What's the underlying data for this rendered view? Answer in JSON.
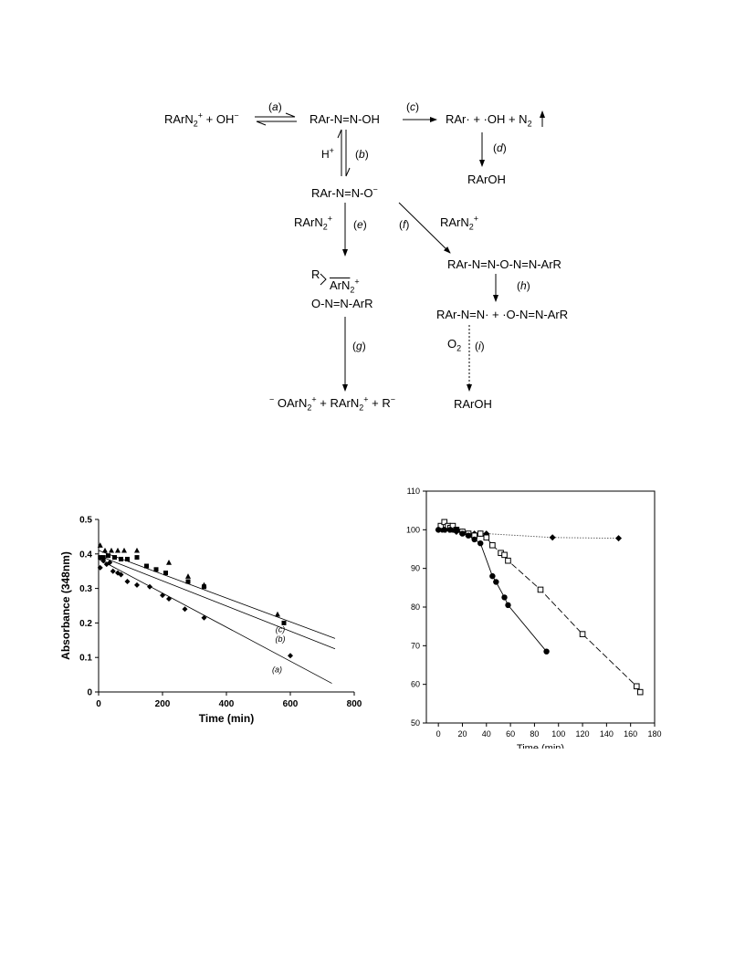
{
  "scheme": {
    "r1": {
      "left": "RArN",
      "sub": "2",
      "sup": "+",
      "rest": " + OH",
      "sup2": "−"
    },
    "a": {
      "open": "(",
      "letter": "a",
      "close": ")"
    },
    "r2": "RAr-N=N-OH",
    "c": {
      "open": "(",
      "letter": "c",
      "close": ")"
    },
    "r3": {
      "text": "RAr· + ·OH + N",
      "sub": "2"
    },
    "d": {
      "open": "(",
      "letter": "d",
      "close": ")"
    },
    "r4": "RArOH",
    "hplus": {
      "text": "H",
      "sup": "+"
    },
    "b": {
      "open": "(",
      "letter": "b",
      "close": ")"
    },
    "r5": {
      "text": "RAr-N=N-O",
      "sup": "−"
    },
    "e_reagent": {
      "text": "RArN",
      "sub": "2",
      "sup": "+"
    },
    "e": {
      "open": "(",
      "letter": "e",
      "close": ")"
    },
    "f": {
      "open": "(",
      "letter": "f",
      "close": ")"
    },
    "f_reagent": {
      "text": "RArN",
      "sub": "2",
      "sup": "+"
    },
    "r6": "RAr-N=N-O-N=N-ArR",
    "r7": {
      "r": "R",
      "ar": "ArN",
      "sub": "2",
      "sup": "+",
      "line2": "O-N=N-ArR"
    },
    "h": {
      "open": "(",
      "letter": "h",
      "close": ")"
    },
    "r8": "RAr-N=N· + ·O-N=N-ArR",
    "g": {
      "open": "(",
      "letter": "g",
      "close": ")"
    },
    "o2": {
      "text": "O",
      "sub": "2"
    },
    "i": {
      "open": "(",
      "letter": "i",
      "close": ")"
    },
    "r9": {
      "p1": "−",
      "p2": " OArN",
      "sub1": "2",
      "sup1": "+",
      "p3": " + RArN",
      "sub2": "2",
      "sup2": "+",
      "p4": " + R",
      "sup3": "−"
    },
    "r10": "RArOH"
  },
  "chart_data": [
    {
      "type": "scatter",
      "title": "",
      "xlabel": "Time (min)",
      "ylabel": "Absorbance (348nm)",
      "xlim": [
        0,
        800
      ],
      "ylim": [
        0,
        0.5
      ],
      "xticks": [
        "0",
        "200",
        "400",
        "600",
        "800"
      ],
      "yticks": [
        "0",
        "0.1",
        "0.2",
        "0.3",
        "0.4",
        "0.5"
      ],
      "grid": false,
      "series": [
        {
          "name": "(a)",
          "marker": "diamond",
          "x": [
            5,
            15,
            25,
            35,
            45,
            60,
            70,
            90,
            120,
            160,
            200,
            220,
            270,
            330,
            600
          ],
          "y": [
            0.36,
            0.38,
            0.37,
            0.375,
            0.35,
            0.345,
            0.34,
            0.32,
            0.31,
            0.305,
            0.28,
            0.27,
            0.24,
            0.215,
            0.105
          ],
          "fit": [
            [
              0,
              0.385
            ],
            [
              730,
              0.025
            ]
          ]
        },
        {
          "name": "(b)",
          "marker": "square",
          "x": [
            5,
            15,
            30,
            50,
            70,
            90,
            120,
            150,
            180,
            210,
            280,
            330,
            580
          ],
          "y": [
            0.39,
            0.39,
            0.395,
            0.39,
            0.385,
            0.385,
            0.39,
            0.365,
            0.355,
            0.345,
            0.32,
            0.305,
            0.2
          ],
          "fit": [
            [
              0,
              0.395
            ],
            [
              740,
              0.125
            ]
          ]
        },
        {
          "name": "(c)",
          "marker": "triangle",
          "x": [
            5,
            20,
            40,
            60,
            80,
            120,
            220,
            280,
            330,
            560
          ],
          "y": [
            0.425,
            0.41,
            0.41,
            0.41,
            0.41,
            0.41,
            0.375,
            0.335,
            0.31,
            0.225
          ],
          "fit": [
            [
              0,
              0.41
            ],
            [
              740,
              0.155
            ]
          ]
        }
      ]
    },
    {
      "type": "line",
      "title": "",
      "xlabel": "Time (min)",
      "ylabel": "",
      "xlim": [
        -10,
        180
      ],
      "ylim": [
        50,
        110
      ],
      "xticks": [
        "0",
        "20",
        "40",
        "60",
        "80",
        "100",
        "120",
        "140",
        "160",
        "180"
      ],
      "yticks": [
        "50",
        "60",
        "70",
        "80",
        "90",
        "100",
        "110"
      ],
      "grid": false,
      "series": [
        {
          "marker": "filled-diamond",
          "line": "dotted",
          "x": [
            0,
            3,
            6,
            9,
            12,
            15,
            20,
            30,
            35,
            40,
            95,
            150
          ],
          "y": [
            100,
            100,
            100,
            100,
            100,
            99.5,
            99.5,
            99,
            99,
            99,
            98,
            97.8
          ]
        },
        {
          "marker": "open-square",
          "line": "dashed",
          "x": [
            2,
            5,
            8,
            10,
            12,
            15,
            20,
            25,
            30,
            35,
            40,
            45,
            52,
            55,
            58,
            85,
            120,
            165,
            168
          ],
          "y": [
            101,
            102,
            101,
            100.5,
            101,
            100,
            99.5,
            99,
            98.5,
            99,
            98,
            96,
            94,
            93.5,
            92,
            84.5,
            73,
            59.5,
            58
          ]
        },
        {
          "marker": "filled-circle",
          "line": "solid",
          "x": [
            0,
            5,
            10,
            15,
            20,
            25,
            30,
            35,
            45,
            48,
            55,
            58,
            90
          ],
          "y": [
            100,
            100,
            100,
            100,
            99,
            98.5,
            97.5,
            96.5,
            88,
            86.5,
            82.5,
            80.5,
            68.5
          ]
        }
      ]
    }
  ]
}
